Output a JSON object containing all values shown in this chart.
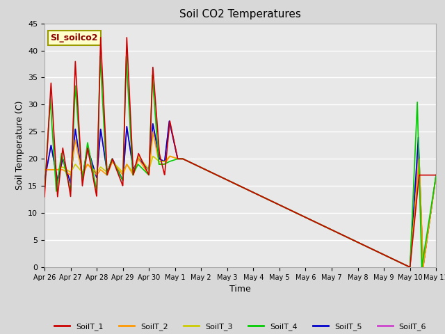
{
  "title": "Soil CO2 Temperatures",
  "xlabel": "Time",
  "ylabel": "Soil Temperature (C)",
  "annotation": "SI_soilco2",
  "ylim": [
    0,
    45
  ],
  "xlim": [
    0,
    15
  ],
  "background_color": "#d8d8d8",
  "plot_bg_color": "#e8e8e8",
  "grid_color": "#ffffff",
  "series_colors": {
    "SoilT_1": "#cc0000",
    "SoilT_2": "#ff9900",
    "SoilT_3": "#cccc00",
    "SoilT_4": "#00cc00",
    "SoilT_5": "#0000cc",
    "SoilT_6": "#cc44cc"
  },
  "xtick_labels": [
    "Apr 26",
    "Apr 27",
    "Apr 28",
    "Apr 29",
    "Apr 30",
    "May 1",
    "May 2",
    "May 3",
    "May 4",
    "May 5",
    "May 6",
    "May 7",
    "May 8",
    "May 9",
    "May 10",
    "May 11"
  ],
  "xtick_positions": [
    0,
    1,
    2,
    3,
    4,
    5,
    6,
    7,
    8,
    9,
    10,
    11,
    12,
    13,
    14,
    15
  ]
}
